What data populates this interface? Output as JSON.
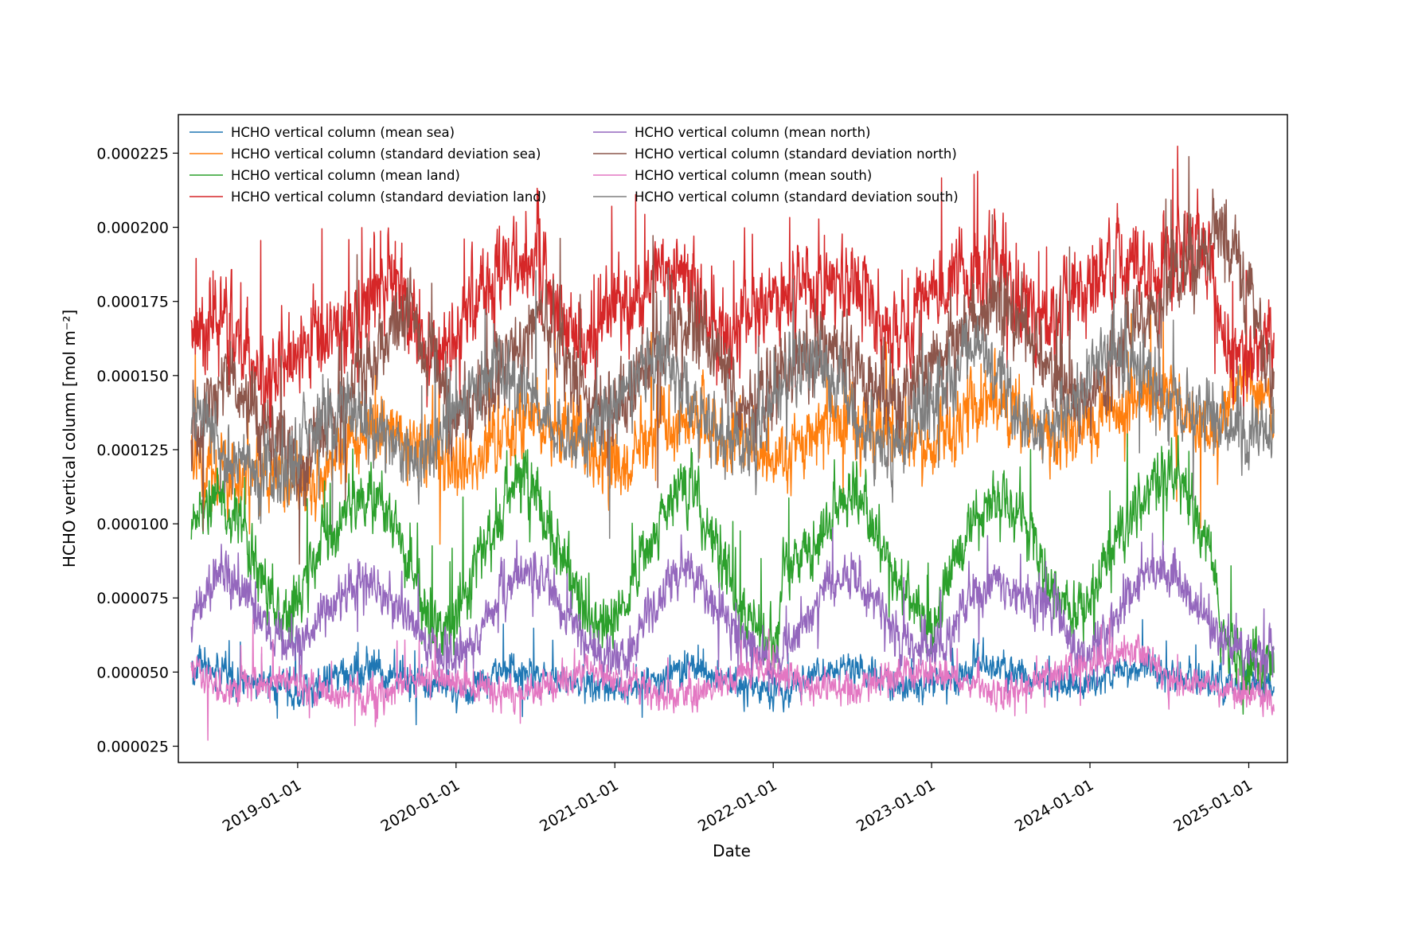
{
  "chart_data": {
    "type": "line",
    "title": "",
    "xlabel": "Date",
    "ylabel": "HCHO vertical column [mol m⁻²]",
    "x_type": "date",
    "xlim": [
      "2018-04-01",
      "2025-03-31"
    ],
    "ylim": [
      1.95e-05,
      0.000238
    ],
    "x_ticks": [
      "2019-01-01",
      "2020-01-01",
      "2021-01-01",
      "2022-01-01",
      "2023-01-01",
      "2024-01-01",
      "2025-01-01"
    ],
    "y_ticks": [
      "0.000025",
      "0.000050",
      "0.000075",
      "0.000100",
      "0.000125",
      "0.000150",
      "0.000175",
      "0.000200",
      "0.000225"
    ],
    "y_tick_values": [
      2.5e-05,
      5e-05,
      7.5e-05,
      0.0001,
      0.000125,
      0.00015,
      0.000175,
      0.0002,
      0.000225
    ],
    "grid": false,
    "legend_position": "top-left",
    "legend_columns": 2,
    "note": "Daily series from approx. 2018-05-01 to 2025-02-28; values below are approximate semi-monthly readings of the noisy daily lines.",
    "x": [
      "2018-05-01",
      "2018-06-01",
      "2018-07-01",
      "2018-08-01",
      "2018-09-01",
      "2018-10-01",
      "2018-11-01",
      "2018-12-01",
      "2019-01-01",
      "2019-02-01",
      "2019-03-01",
      "2019-04-01",
      "2019-05-01",
      "2019-06-01",
      "2019-07-01",
      "2019-08-01",
      "2019-09-01",
      "2019-10-01",
      "2019-11-01",
      "2019-12-01",
      "2020-01-01",
      "2020-02-01",
      "2020-03-01",
      "2020-04-01",
      "2020-05-01",
      "2020-06-01",
      "2020-07-01",
      "2020-08-01",
      "2020-09-01",
      "2020-10-01",
      "2020-11-01",
      "2020-12-01",
      "2021-01-01",
      "2021-02-01",
      "2021-03-01",
      "2021-04-01",
      "2021-05-01",
      "2021-06-01",
      "2021-07-01",
      "2021-08-01",
      "2021-09-01",
      "2021-10-01",
      "2021-11-01",
      "2021-12-01",
      "2022-01-01",
      "2022-02-01",
      "2022-03-01",
      "2022-04-01",
      "2022-05-01",
      "2022-06-01",
      "2022-07-01",
      "2022-08-01",
      "2022-09-01",
      "2022-10-01",
      "2022-11-01",
      "2022-12-01",
      "2023-01-01",
      "2023-02-01",
      "2023-03-01",
      "2023-04-01",
      "2023-05-01",
      "2023-06-01",
      "2023-07-01",
      "2023-08-01",
      "2023-09-01",
      "2023-10-01",
      "2023-11-01",
      "2023-12-01",
      "2024-01-01",
      "2024-02-01",
      "2024-03-01",
      "2024-04-01",
      "2024-05-01",
      "2024-06-01",
      "2024-07-01",
      "2024-08-01",
      "2024-09-01",
      "2024-10-01",
      "2024-11-01",
      "2024-12-01",
      "2025-01-01",
      "2025-02-01",
      "2025-02-28"
    ],
    "series": [
      {
        "name": "HCHO vertical column (mean sea)",
        "color": "#1f77b4",
        "values": [
          5.1e-05,
          5.2e-05,
          5e-05,
          4.8e-05,
          4.7e-05,
          4.6e-05,
          4.6e-05,
          4.5e-05,
          4.3e-05,
          4.4e-05,
          4.6e-05,
          4.8e-05,
          5e-05,
          5.1e-05,
          5e-05,
          4.8e-05,
          4.7e-05,
          4.6e-05,
          4.6e-05,
          4.5e-05,
          4.3e-05,
          4.4e-05,
          4.7e-05,
          5e-05,
          5.2e-05,
          5.1e-05,
          5e-05,
          4.8e-05,
          4.7e-05,
          4.6e-05,
          4.6e-05,
          4.5e-05,
          4.4e-05,
          4.4e-05,
          4.6e-05,
          4.8e-05,
          5e-05,
          5.1e-05,
          5.2e-05,
          5e-05,
          4.8e-05,
          4.6e-05,
          4.6e-05,
          4.5e-05,
          4.3e-05,
          4.3e-05,
          4.6e-05,
          4.9e-05,
          5.1e-05,
          5.2e-05,
          5.1e-05,
          5e-05,
          4.8e-05,
          4.6e-05,
          4.6e-05,
          4.5e-05,
          4.6e-05,
          4.7e-05,
          4.9e-05,
          5e-05,
          5.2e-05,
          5.1e-05,
          5e-05,
          4.8e-05,
          4.7e-05,
          4.6e-05,
          4.6e-05,
          4.6e-05,
          4.6e-05,
          4.8e-05,
          5e-05,
          5.1e-05,
          5.2e-05,
          5.1e-05,
          5e-05,
          4.9e-05,
          4.8e-05,
          4.7e-05,
          4.6e-05,
          4.5e-05,
          4.5e-05,
          4.5e-05,
          4.6e-05
        ]
      },
      {
        "name": "HCHO vertical column (standard deviation sea)",
        "color": "#ff7f0e",
        "values": [
          0.000122,
          0.00012,
          0.000118,
          0.000117,
          0.000116,
          0.000117,
          0.000118,
          0.000116,
          0.000112,
          0.000114,
          0.000118,
          0.000122,
          0.000125,
          0.00013,
          0.000134,
          0.000133,
          0.000131,
          0.000128,
          0.000125,
          0.000122,
          0.00012,
          0.000122,
          0.000125,
          0.000128,
          0.000132,
          0.000135,
          0.000134,
          0.000132,
          0.00013,
          0.000128,
          0.000126,
          0.000122,
          0.00012,
          0.000122,
          0.000126,
          0.00013,
          0.000133,
          0.000135,
          0.000134,
          0.000132,
          0.00013,
          0.000128,
          0.000126,
          0.000123,
          0.000122,
          0.000124,
          0.000128,
          0.000132,
          0.000135,
          0.000136,
          0.000135,
          0.000133,
          0.000131,
          0.00013,
          0.000128,
          0.000127,
          0.000127,
          0.000129,
          0.000132,
          0.000136,
          0.000138,
          0.000139,
          0.000138,
          0.000135,
          0.000133,
          0.000132,
          0.000132,
          0.000132,
          0.000133,
          0.000135,
          0.000137,
          0.00014,
          0.000142,
          0.000143,
          0.000142,
          0.000138,
          0.000135,
          0.000134,
          0.000135,
          0.000148,
          0.000146,
          0.000142,
          0.000138
        ]
      },
      {
        "name": "HCHO vertical column (mean land)",
        "color": "#2ca02c",
        "values": [
          0.0001,
          0.000108,
          0.00011,
          0.000103,
          9.4e-05,
          8.5e-05,
          7.4e-05,
          6.8e-05,
          7.2e-05,
          8.5e-05,
          9.5e-05,
          9.8e-05,
          0.000105,
          0.000112,
          0.00011,
          0.000102,
          9.2e-05,
          8.1e-05,
          6.8e-05,
          6.5e-05,
          6.7e-05,
          8e-05,
          9.2e-05,
          0.0001,
          0.000108,
          0.000115,
          0.000112,
          0.0001,
          8.9e-05,
          8e-05,
          7e-05,
          6.6e-05,
          6.8e-05,
          7.6e-05,
          8.8e-05,
          9.6e-05,
          0.000105,
          0.000115,
          0.000113,
          0.0001,
          8.8e-05,
          7.8e-05,
          7e-05,
          6.2e-05,
          6e-05,
          8.5e-05,
          9e-05,
          9.2e-05,
          9.6e-05,
          0.000106,
          0.000112,
          0.000104,
          9.6e-05,
          8.6e-05,
          7.6e-05,
          6.8e-05,
          6.3e-05,
          7.8e-05,
          9e-05,
          9.8e-05,
          0.000104,
          0.000108,
          0.000106,
          0.0001,
          9e-05,
          8e-05,
          7.2e-05,
          7e-05,
          7.2e-05,
          8.5e-05,
          9.6e-05,
          0.000104,
          0.00011,
          0.000115,
          0.000118,
          0.000112,
          0.000102,
          9.2e-05,
          6.2e-05,
          5.6e-05,
          5.3e-05,
          5.4e-05,
          5.6e-05
        ]
      },
      {
        "name": "HCHO vertical column (standard deviation land)",
        "color": "#d62728",
        "values": [
          0.000165,
          0.000166,
          0.00017,
          0.000172,
          0.00016,
          0.00015,
          0.000147,
          0.000152,
          0.000158,
          0.000164,
          0.000166,
          0.000168,
          0.000165,
          0.00017,
          0.00018,
          0.000182,
          0.000176,
          0.000166,
          0.000157,
          0.000158,
          0.000162,
          0.000172,
          0.000178,
          0.000182,
          0.000185,
          0.000187,
          0.000188,
          0.00018,
          0.000168,
          0.000162,
          0.000162,
          0.000168,
          0.000172,
          0.000175,
          0.000178,
          0.000182,
          0.000183,
          0.000186,
          0.00018,
          0.00017,
          0.00016,
          0.00016,
          0.000168,
          0.000175,
          0.000176,
          0.000178,
          0.00018,
          0.000182,
          0.000178,
          0.00018,
          0.000184,
          0.000176,
          0.000168,
          0.000164,
          0.000166,
          0.000172,
          0.000176,
          0.00018,
          0.000184,
          0.000185,
          0.000184,
          0.000186,
          0.000182,
          0.000174,
          0.00017,
          0.000172,
          0.000176,
          0.000178,
          0.00018,
          0.000182,
          0.000184,
          0.000186,
          0.000186,
          0.000188,
          0.00019,
          0.000192,
          0.000195,
          0.000188,
          0.000162,
          0.000158,
          0.000156,
          0.000162,
          0.000168
        ]
      },
      {
        "name": "HCHO vertical column (mean north)",
        "color": "#9467bd",
        "values": [
          6.8e-05,
          7.8e-05,
          8.5e-05,
          8.2e-05,
          7.6e-05,
          7e-05,
          6.4e-05,
          6e-05,
          5.8e-05,
          6.4e-05,
          7e-05,
          7.4e-05,
          7.8e-05,
          8.2e-05,
          8e-05,
          7.6e-05,
          7.2e-05,
          6.6e-05,
          6e-05,
          5.6e-05,
          5.4e-05,
          5.8e-05,
          6.4e-05,
          7.2e-05,
          7.8e-05,
          8.4e-05,
          8.2e-05,
          7.8e-05,
          7.2e-05,
          6.6e-05,
          6e-05,
          5.6e-05,
          5.4e-05,
          5.6e-05,
          6.4e-05,
          7.2e-05,
          7.8e-05,
          8.6e-05,
          8.3e-05,
          7.6e-05,
          7e-05,
          6.4e-05,
          6e-05,
          5.6e-05,
          5.4e-05,
          5.8e-05,
          6.4e-05,
          7e-05,
          7.6e-05,
          8.4e-05,
          8.2e-05,
          7.6e-05,
          7e-05,
          6.5e-05,
          6.1e-05,
          5.8e-05,
          5.8e-05,
          6e-05,
          6.6e-05,
          7.4e-05,
          7.8e-05,
          8e-05,
          7.8e-05,
          7.6e-05,
          7.4e-05,
          7.2e-05,
          6.6e-05,
          5.6e-05,
          5.6e-05,
          6e-05,
          6.8e-05,
          7.6e-05,
          8.2e-05,
          8.6e-05,
          8.4e-05,
          8e-05,
          7.4e-05,
          6.8e-05,
          6e-05,
          5.8e-05,
          5.6e-05,
          5.6e-05,
          5.6e-05
        ]
      },
      {
        "name": "HCHO vertical column (standard deviation north)",
        "color": "#8c564b",
        "values": [
          0.00013,
          0.000138,
          0.000145,
          0.000148,
          0.000144,
          0.000138,
          0.00013,
          0.000124,
          0.00012,
          0.000128,
          0.000134,
          0.000138,
          0.000142,
          0.00015,
          0.000158,
          0.000165,
          0.00017,
          0.000166,
          0.000156,
          0.000146,
          0.000138,
          0.00014,
          0.000146,
          0.00015,
          0.000156,
          0.000162,
          0.000166,
          0.000164,
          0.000158,
          0.00015,
          0.000142,
          0.000138,
          0.00014,
          0.000146,
          0.000152,
          0.000158,
          0.000162,
          0.000166,
          0.000168,
          0.000162,
          0.000154,
          0.000146,
          0.00014,
          0.00014,
          0.000146,
          0.000152,
          0.000156,
          0.00016,
          0.000162,
          0.00016,
          0.000156,
          0.00015,
          0.000144,
          0.00014,
          0.000142,
          0.000148,
          0.000154,
          0.00016,
          0.000166,
          0.00017,
          0.000172,
          0.000176,
          0.000174,
          0.000166,
          0.000158,
          0.000152,
          0.000146,
          0.000142,
          0.000144,
          0.00015,
          0.000156,
          0.000162,
          0.000168,
          0.000174,
          0.00018,
          0.000186,
          0.00019,
          0.000195,
          0.0002,
          0.00019,
          0.000175,
          0.00016,
          0.000145
        ]
      },
      {
        "name": "HCHO vertical column (mean south)",
        "color": "#e377c2",
        "values": [
          5.3e-05,
          4.8e-05,
          4.5e-05,
          4.3e-05,
          4.5e-05,
          4.6e-05,
          4.7e-05,
          4.8e-05,
          4.6e-05,
          4.5e-05,
          4.4e-05,
          4.3e-05,
          4.4e-05,
          4.3e-05,
          4.2e-05,
          4.4e-05,
          4.6e-05,
          4.8e-05,
          4.9e-05,
          4.8e-05,
          4.6e-05,
          4.5e-05,
          4.4e-05,
          4.3e-05,
          4.3e-05,
          4.2e-05,
          4.3e-05,
          4.5e-05,
          4.7e-05,
          4.9e-05,
          5e-05,
          4.9e-05,
          4.7e-05,
          4.6e-05,
          4.5e-05,
          4.4e-05,
          4.3e-05,
          4.3e-05,
          4.2e-05,
          4.4e-05,
          4.6e-05,
          4.8e-05,
          5e-05,
          5.1e-05,
          5e-05,
          4.8e-05,
          4.7e-05,
          4.6e-05,
          4.5e-05,
          4.4e-05,
          4.4e-05,
          4.5e-05,
          4.7e-05,
          4.8e-05,
          4.9e-05,
          5e-05,
          5e-05,
          4.9e-05,
          4.8e-05,
          4.6e-05,
          4.5e-05,
          4.4e-05,
          4.4e-05,
          4.5e-05,
          4.7e-05,
          4.9e-05,
          5.1e-05,
          5.2e-05,
          5.3e-05,
          5.4e-05,
          5.6e-05,
          5.8e-05,
          5.6e-05,
          5.2e-05,
          4.8e-05,
          4.6e-05,
          4.6e-05,
          4.6e-05,
          4.4e-05,
          4.2e-05,
          4.2e-05,
          4.2e-05,
          4.1e-05
        ]
      },
      {
        "name": "HCHO vertical column (standard deviation south)",
        "color": "#7f7f7f",
        "values": [
          0.000138,
          0.000132,
          0.000126,
          0.000122,
          0.00012,
          0.000118,
          0.000116,
          0.000118,
          0.000124,
          0.00013,
          0.000136,
          0.00014,
          0.000138,
          0.000134,
          0.00013,
          0.000128,
          0.000126,
          0.000124,
          0.000125,
          0.00013,
          0.000138,
          0.000144,
          0.00015,
          0.000154,
          0.000152,
          0.000146,
          0.000138,
          0.000132,
          0.00013,
          0.000128,
          0.00013,
          0.000136,
          0.000142,
          0.000148,
          0.000152,
          0.000156,
          0.000154,
          0.000146,
          0.000138,
          0.000132,
          0.000128,
          0.000126,
          0.000128,
          0.000134,
          0.000142,
          0.000148,
          0.000152,
          0.000154,
          0.00015,
          0.000144,
          0.000138,
          0.000132,
          0.000128,
          0.000126,
          0.000128,
          0.000134,
          0.000142,
          0.00015,
          0.000155,
          0.000158,
          0.000156,
          0.000148,
          0.00014,
          0.000134,
          0.000132,
          0.000132,
          0.000135,
          0.000142,
          0.00015,
          0.000156,
          0.00016,
          0.000158,
          0.000152,
          0.000146,
          0.00014,
          0.000138,
          0.000138,
          0.000136,
          0.000134,
          0.000132,
          0.00013,
          0.000132,
          0.000135
        ]
      }
    ]
  }
}
